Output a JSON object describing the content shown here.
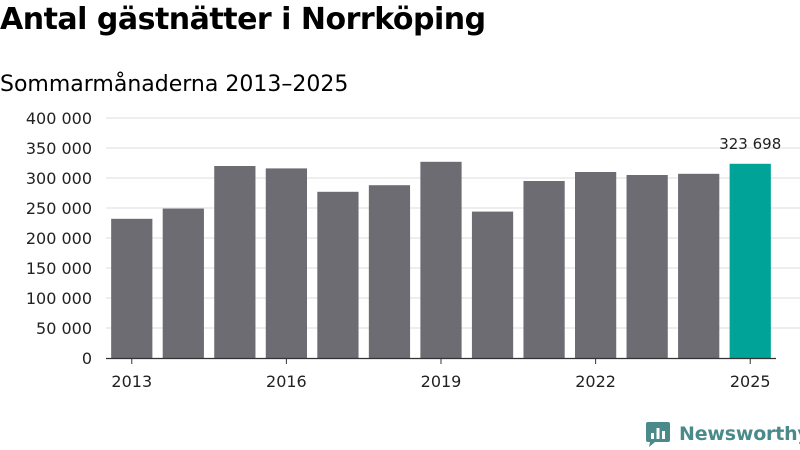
{
  "chart_data": {
    "type": "bar",
    "title": "Antal gästnätter i Norrköping",
    "subtitle": "Sommarmånaderna 2013–2025",
    "categories": [
      "2013",
      "2014",
      "2015",
      "2016",
      "2017",
      "2018",
      "2019",
      "2020",
      "2021",
      "2022",
      "2023",
      "2024",
      "2025"
    ],
    "values": [
      232000,
      249000,
      320000,
      316000,
      277000,
      288000,
      327000,
      244000,
      295000,
      310000,
      305000,
      307000,
      323698
    ],
    "x_tick_labels": [
      "2013",
      "2016",
      "2019",
      "2022",
      "2025"
    ],
    "y_ticks": [
      0,
      50000,
      100000,
      150000,
      200000,
      250000,
      300000,
      350000,
      400000
    ],
    "y_tick_labels": [
      "0",
      "50 000",
      "100 000",
      "150 000",
      "200 000",
      "250 000",
      "300 000",
      "350 000",
      "400 000"
    ],
    "ylim": [
      0,
      400000
    ],
    "xlabel": "",
    "ylabel": "",
    "grid": true,
    "bar_color": "#6d6c72",
    "highlight_color": "#00a398",
    "highlight_index": 12,
    "data_labels": [
      {
        "index": 12,
        "text": "323 698"
      }
    ]
  },
  "brand": {
    "name": "Newsworthy",
    "color": "#4a8a8a",
    "icon": "newsworthy-logo-icon"
  }
}
